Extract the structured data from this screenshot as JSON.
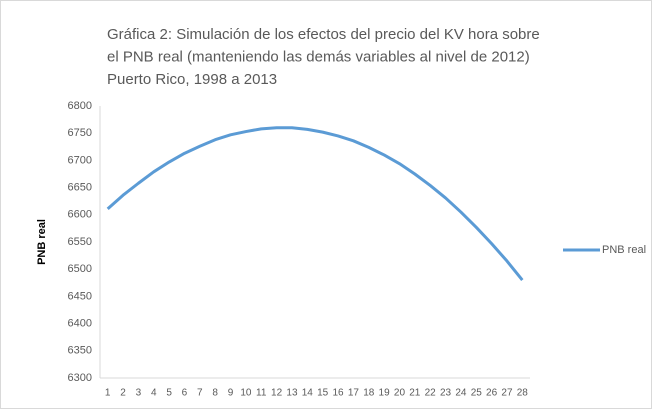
{
  "chart_data": {
    "type": "line",
    "title": [
      "Gráfica 2: Simulación de los efectos del precio del KV hora  sobre",
      "el PNB real (manteniendo las demás variables al nivel de 2012)",
      "Puerto Rico, 1998 a 2013"
    ],
    "y_label": "PNB real",
    "categories": [
      1,
      2,
      3,
      4,
      5,
      6,
      7,
      8,
      9,
      10,
      11,
      12,
      13,
      14,
      15,
      16,
      17,
      18,
      19,
      20,
      21,
      22,
      23,
      24,
      25,
      26,
      27,
      28
    ],
    "series": [
      {
        "name": "PNB real",
        "color": "#5b9bd5",
        "values": [
          6611,
          6636,
          6658,
          6679,
          6697,
          6713,
          6726,
          6738,
          6747,
          6753,
          6758,
          6760,
          6760,
          6757,
          6752,
          6745,
          6736,
          6724,
          6710,
          6694,
          6675,
          6654,
          6631,
          6605,
          6577,
          6547,
          6515,
          6480
        ]
      }
    ],
    "ylim": [
      6300,
      6800
    ],
    "yticks": [
      6300,
      6350,
      6400,
      6450,
      6500,
      6550,
      6600,
      6650,
      6700,
      6750,
      6800
    ],
    "grid": false,
    "legend": "right"
  }
}
